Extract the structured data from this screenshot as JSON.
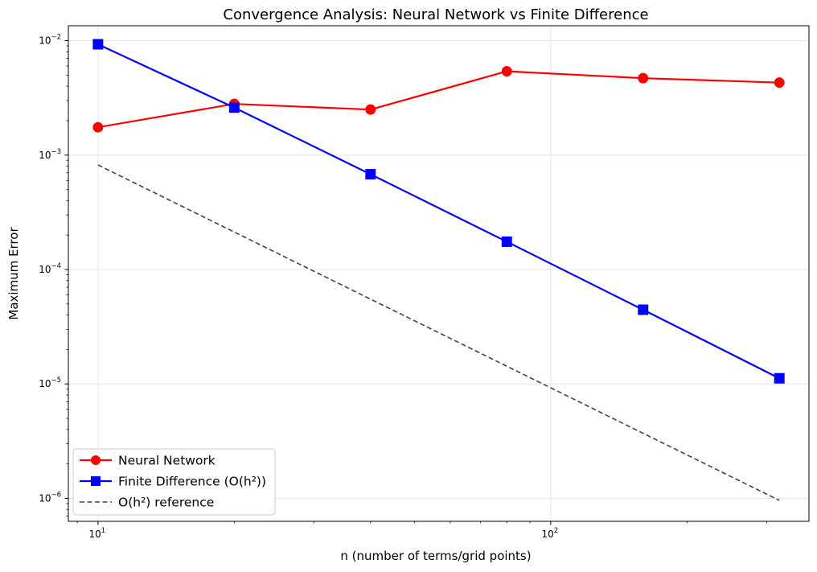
{
  "chart_data": {
    "type": "line",
    "title": "Convergence Analysis: Neural Network vs Finite Difference",
    "xlabel": "n (number of terms/grid points)",
    "ylabel": "Maximum Error",
    "xscale": "log",
    "yscale": "log",
    "xlim": [
      8.6,
      372
    ],
    "ylim": [
      6.3e-07,
      0.0135
    ],
    "x_ticks": [
      {
        "value": 10,
        "base": "10",
        "exp": "1"
      },
      {
        "value": 100,
        "base": "10",
        "exp": "2"
      }
    ],
    "y_ticks": [
      {
        "value": 1e-06,
        "base": "10",
        "exp": "−6"
      },
      {
        "value": 1e-05,
        "base": "10",
        "exp": "−5"
      },
      {
        "value": 0.0001,
        "base": "10",
        "exp": "−4"
      },
      {
        "value": 0.001,
        "base": "10",
        "exp": "−3"
      },
      {
        "value": 0.01,
        "base": "10",
        "exp": "−2"
      }
    ],
    "grid": true,
    "legend_position": "bottom-left",
    "series": [
      {
        "name": "Neural Network",
        "color": "#ff0000",
        "marker": "circle",
        "linestyle": "solid",
        "x": [
          10,
          20,
          40,
          80,
          160,
          320
        ],
        "y": [
          0.00175,
          0.0028,
          0.0025,
          0.0054,
          0.0047,
          0.0043
        ]
      },
      {
        "name": "Finite Difference (O(h²))",
        "color": "#0000ff",
        "marker": "square",
        "linestyle": "solid",
        "x": [
          10,
          20,
          40,
          80,
          160,
          320
        ],
        "y": [
          0.0093,
          0.0026,
          0.00068,
          0.000175,
          4.45e-05,
          1.12e-05
        ]
      },
      {
        "name": "O(h²) reference",
        "color": "#444444",
        "marker": "none",
        "linestyle": "dashed",
        "x": [
          10,
          320
        ],
        "y": [
          0.00082,
          9.6e-07
        ]
      }
    ]
  }
}
